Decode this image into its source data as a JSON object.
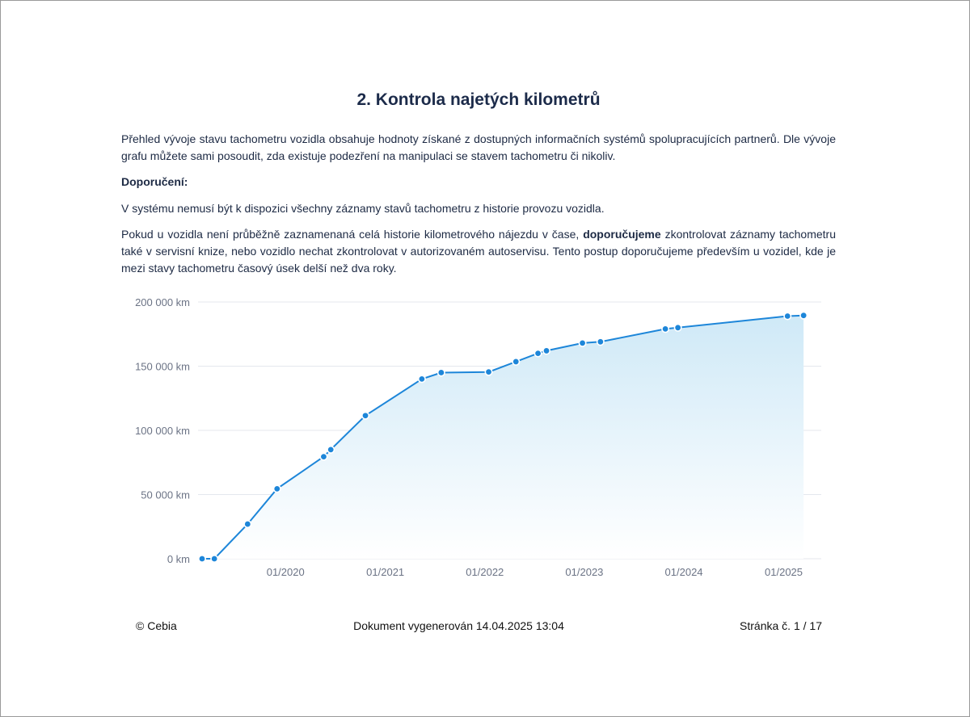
{
  "page": {
    "title": "2. Kontrola najetých kilometrů",
    "paragraph1": "Přehled vývoje stavu tachometru vozidla obsahuje hodnoty získané z dostupných informačních systémů spolupracujících partnerů. Dle vývoje grafu můžete sami posoudit, zda existuje podezření na manipulaci se stavem tachometru či nikoliv.",
    "recommendation_heading": "Doporučení:",
    "paragraph2": "V systému nemusí být k dispozici všechny záznamy stavů tachometru z historie provozu vozidla.",
    "paragraph3_before": "Pokud u vozidla není průběžně zaznamenaná celá historie kilometrového nájezdu v čase, ",
    "paragraph3_bold": "doporučujeme",
    "paragraph3_after": " zkontrolovat záznamy tachometru také v servisní knize, nebo vozidlo nechat zkontrolovat v autorizovaném autoservisu. Tento postup doporučujeme především u vozidel, kde je mezi stavy tachometru časový úsek delší než dva roky."
  },
  "footer": {
    "copyright": "© Cebia",
    "generated": "Dokument vygenerován 14.04.2025 13:04",
    "page_number": "Stránka č. 1 / 17"
  },
  "colors": {
    "line": "#1d86d9",
    "area_top": "#cfe9f7",
    "area_bottom": "#ffffff",
    "grid": "#e4e7ee",
    "tick_text": "#6b7385"
  },
  "chart_data": {
    "type": "area",
    "title": "",
    "xlabel": "",
    "ylabel": "",
    "ylim": [
      0,
      200000
    ],
    "y_ticks": [
      0,
      50000,
      100000,
      150000,
      200000
    ],
    "y_tick_labels": [
      "0 km",
      "50 000 km",
      "100 000 km",
      "150 000 km",
      "200 000 km"
    ],
    "x_ticks": [
      "2020-01-01",
      "2021-01-01",
      "2022-01-01",
      "2023-01-01",
      "2024-01-01",
      "2025-01-01"
    ],
    "x_tick_labels": [
      "01/2020",
      "01/2021",
      "01/2022",
      "01/2023",
      "01/2024",
      "01/2025"
    ],
    "grid": true,
    "legend": false,
    "series": [
      {
        "points": [
          {
            "x": "2019-03-01",
            "y": 0
          },
          {
            "x": "2019-04-15",
            "y": 0
          },
          {
            "x": "2019-08-15",
            "y": 27000
          },
          {
            "x": "2019-12-01",
            "y": 54500
          },
          {
            "x": "2020-05-20",
            "y": 79500
          },
          {
            "x": "2020-06-15",
            "y": 85000
          },
          {
            "x": "2020-10-20",
            "y": 111500
          },
          {
            "x": "2021-05-15",
            "y": 140000
          },
          {
            "x": "2021-07-25",
            "y": 145000
          },
          {
            "x": "2022-01-15",
            "y": 145500
          },
          {
            "x": "2022-04-25",
            "y": 153500
          },
          {
            "x": "2022-07-15",
            "y": 160000
          },
          {
            "x": "2022-08-15",
            "y": 162000
          },
          {
            "x": "2022-12-25",
            "y": 168000
          },
          {
            "x": "2023-03-01",
            "y": 169000
          },
          {
            "x": "2023-10-25",
            "y": 179000
          },
          {
            "x": "2023-12-10",
            "y": 180000
          },
          {
            "x": "2025-01-15",
            "y": 189000
          },
          {
            "x": "2025-03-15",
            "y": 189500
          }
        ]
      }
    ]
  }
}
